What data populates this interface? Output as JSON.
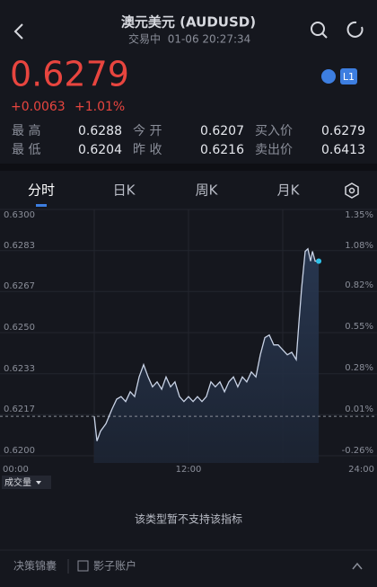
{
  "header": {
    "title": "澳元美元 (AUDUSD)",
    "status": "交易中",
    "datetime": "01-06 20:27:34",
    "badge": "L1"
  },
  "quote": {
    "price": "0.6279",
    "change": "+0.0063",
    "change_pct": "+1.01%"
  },
  "stats": [
    [
      {
        "label": "最 高",
        "value": "0.6288"
      },
      {
        "label": "今 开",
        "value": "0.6207"
      },
      {
        "label": "买入价",
        "value": "0.6279"
      }
    ],
    [
      {
        "label": "最 低",
        "value": "0.6204"
      },
      {
        "label": "昨 收",
        "value": "0.6216"
      },
      {
        "label": "卖出价",
        "value": "0.6413"
      }
    ]
  ],
  "tabs": [
    "分时",
    "日K",
    "周K",
    "月K"
  ],
  "chart_data": {
    "type": "line",
    "x": [
      6.0,
      6.17,
      6.4,
      6.74,
      7.14,
      7.43,
      7.71,
      8.0,
      8.29,
      8.57,
      8.86,
      9.14,
      9.43,
      9.71,
      10.0,
      10.29,
      10.57,
      10.86,
      11.14,
      11.43,
      11.71,
      12.0,
      12.29,
      12.57,
      12.86,
      13.14,
      13.43,
      13.71,
      14.0,
      14.29,
      14.57,
      14.86,
      15.14,
      15.43,
      15.71,
      16.0,
      16.29,
      16.57,
      16.86,
      17.14,
      17.43,
      17.71,
      18.0,
      18.29,
      18.57,
      18.86,
      19.03,
      19.2,
      19.43,
      19.6,
      19.77,
      19.89,
      20.06,
      20.29
    ],
    "values": [
      0.6216,
      0.6206,
      0.621,
      0.6213,
      0.6219,
      0.6223,
      0.6224,
      0.6222,
      0.6226,
      0.6224,
      0.6232,
      0.6237,
      0.6232,
      0.6228,
      0.623,
      0.6227,
      0.6232,
      0.6228,
      0.623,
      0.6224,
      0.6222,
      0.6224,
      0.6222,
      0.6224,
      0.6222,
      0.6224,
      0.623,
      0.6228,
      0.623,
      0.6226,
      0.623,
      0.6232,
      0.6228,
      0.6232,
      0.623,
      0.6234,
      0.6232,
      0.6241,
      0.6248,
      0.6249,
      0.6245,
      0.6245,
      0.6243,
      0.6241,
      0.6242,
      0.6239,
      0.6254,
      0.6268,
      0.6283,
      0.6284,
      0.6279,
      0.6283,
      0.6279,
      0.6279
    ],
    "color": "#c9d3e6",
    "prev_close": 0.6216,
    "xlim": [
      0,
      24
    ],
    "xticks": [
      {
        "value": 0,
        "label": "00:00"
      },
      {
        "value": 12,
        "label": "12:00"
      },
      {
        "value": 24,
        "label": "24:00"
      }
    ],
    "ylim": [
      0.62,
      0.63
    ],
    "yticks": [
      {
        "value": 0.63,
        "label": "0.6300"
      },
      {
        "value": 0.62833,
        "label": "0.6283"
      },
      {
        "value": 0.62667,
        "label": "0.6267"
      },
      {
        "value": 0.625,
        "label": "0.6250"
      },
      {
        "value": 0.62333,
        "label": "0.6233"
      },
      {
        "value": 0.62167,
        "label": "0.6217"
      },
      {
        "value": 0.62,
        "label": "0.6200"
      }
    ],
    "y2lim": [
      -0.26,
      1.35
    ],
    "y2ticks": [
      {
        "value": 1.35,
        "label": "1.35%"
      },
      {
        "value": 1.08,
        "label": "1.08%"
      },
      {
        "value": 0.82,
        "label": "0.82%"
      },
      {
        "value": 0.55,
        "label": "0.55%"
      },
      {
        "value": 0.28,
        "label": "0.28%"
      },
      {
        "value": 0.01,
        "label": "0.01%"
      },
      {
        "value": -0.26,
        "label": "-0.26%"
      }
    ],
    "grid": true
  },
  "volume_label": "成交量",
  "notice": "该类型暂不支持该指标",
  "footer": [
    "决策锦囊",
    "影子账户"
  ]
}
